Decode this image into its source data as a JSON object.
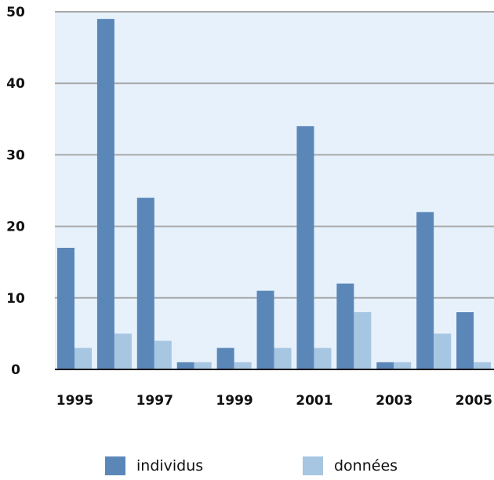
{
  "chart_data": {
    "type": "bar",
    "categories": [
      "1995",
      "1996",
      "1997",
      "1998",
      "1999",
      "2000",
      "2001",
      "2002",
      "2003",
      "2004",
      "2005"
    ],
    "x_tick_labels": [
      "1995",
      "1997",
      "1999",
      "2001",
      "2003",
      "2005"
    ],
    "y_tick_labels": [
      "0",
      "10",
      "20",
      "30",
      "40",
      "50"
    ],
    "ylim": [
      0,
      50
    ],
    "grid": true,
    "legend_position": "bottom",
    "series": [
      {
        "name": "individus",
        "color": "#5b87b8",
        "values": [
          17,
          49,
          24,
          1,
          3,
          11,
          34,
          12,
          1,
          22,
          8
        ]
      },
      {
        "name": "données",
        "color": "#a6c6e2",
        "values": [
          3,
          5,
          4,
          1,
          1,
          3,
          3,
          8,
          1,
          5,
          1
        ]
      }
    ],
    "colors": {
      "plot_background": "#e6f1fc",
      "gridline": "#a9a9a9",
      "axis": "#111111"
    }
  }
}
